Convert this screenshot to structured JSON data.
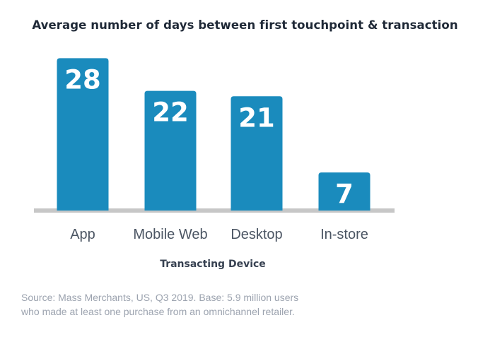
{
  "page": {
    "source_line1": "Source: Mass Merchants, US, Q3 2019. Base: 5.9 million users",
    "source_line2": "who made at least one purchase from an omnichannel retailer."
  },
  "chart_data": {
    "type": "bar",
    "title": "Average number of days between first touchpoint & transaction",
    "xlabel": "Transacting Device",
    "ylabel": "",
    "categories": [
      "App",
      "Mobile Web",
      "Desktop",
      "In-store"
    ],
    "values": [
      28,
      22,
      21,
      7
    ],
    "data_labels": [
      "28",
      "22",
      "21",
      "7"
    ],
    "ylim": [
      0,
      30
    ],
    "grid": false,
    "legend": "none",
    "colors": {
      "bar": "#1a8bbd",
      "label": "#ffffff",
      "baseline": "#c7c7c7",
      "axis_text": "#4b5563",
      "xlabel": "#374151"
    }
  }
}
